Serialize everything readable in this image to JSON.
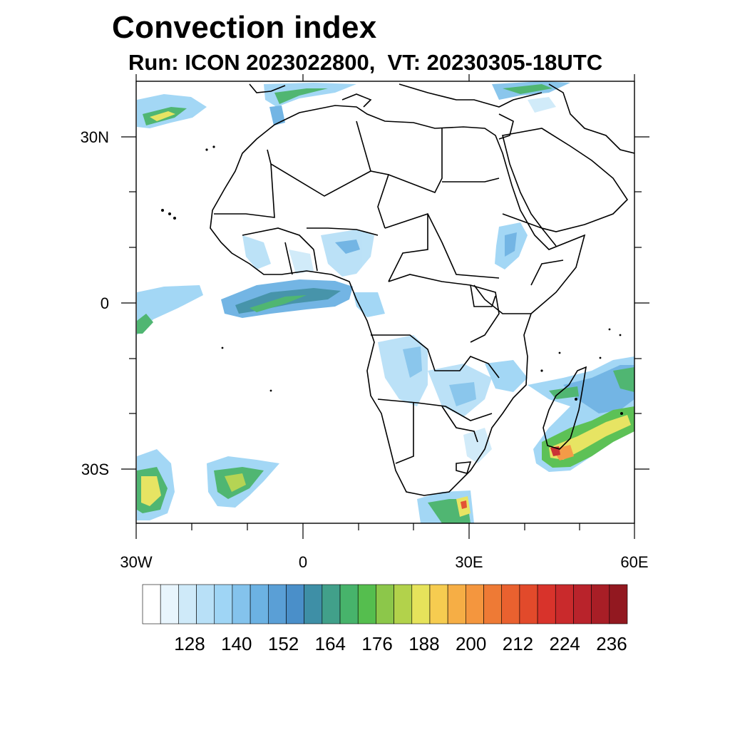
{
  "title": "Convection index",
  "subtitle": "Run: ICON 2023022800,  VT: 20230305-18UTC",
  "map": {
    "region": "Africa",
    "lon_range": [
      -30,
      60
    ],
    "lat_range": [
      -40,
      40
    ],
    "lat_ticks": [
      {
        "value": 30,
        "label": "30N"
      },
      {
        "value": 0,
        "label": "0"
      },
      {
        "value": -30,
        "label": "30S"
      }
    ],
    "lon_ticks": [
      {
        "value": -30,
        "label": "30W"
      },
      {
        "value": 0,
        "label": "0"
      },
      {
        "value": 30,
        "label": "30E"
      },
      {
        "value": 60,
        "label": "60E"
      }
    ]
  },
  "colorbar": {
    "labels": [
      "128",
      "140",
      "152",
      "164",
      "176",
      "188",
      "200",
      "212",
      "224",
      "236"
    ],
    "colors": [
      "#ffffff",
      "#e8f5fd",
      "#cfeaf9",
      "#b8e0f7",
      "#9fd5f5",
      "#84c3ec",
      "#6cb2e3",
      "#5a9fd6",
      "#4a8fc9",
      "#3e8fa6",
      "#41a08a",
      "#47b36b",
      "#55be4e",
      "#8cc74a",
      "#b2d24b",
      "#e6e35b",
      "#f6cc50",
      "#f6ae45",
      "#f4963e",
      "#ee7a35",
      "#e9612f",
      "#e24a2b",
      "#d8332b",
      "#c92a2c",
      "#b9232b",
      "#a81e26",
      "#921820"
    ]
  },
  "colors": {
    "land_outline": "#000000",
    "light_blue": "#a6d6f2",
    "mid_blue": "#6fb6e6",
    "teal": "#4a9f98",
    "green": "#5cba59",
    "yellow": "#e4e05e",
    "orange": "#f5a13f",
    "red": "#d8332b"
  }
}
